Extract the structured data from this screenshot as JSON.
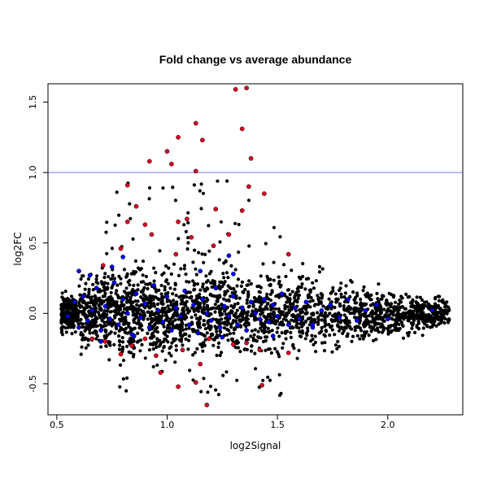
{
  "chart_data": {
    "type": "scatter",
    "title": "Fold change vs average abundance",
    "xlabel": "log2Signal",
    "ylabel": "log2FC",
    "xlim": [
      0.46,
      2.34
    ],
    "ylim": [
      -0.72,
      1.63
    ],
    "x_ticks": [
      "0.5",
      "1.0",
      "1.5",
      "2.0"
    ],
    "y_ticks": [
      "-0.5",
      "0.0",
      "0.5",
      "1.0",
      "1.5"
    ],
    "x_tick_values": [
      0.5,
      1.0,
      1.5,
      2.0
    ],
    "y_tick_values": [
      -0.5,
      0.0,
      0.5,
      1.0,
      1.5
    ],
    "reference_line": {
      "y": 1.0,
      "color": "#7777ff"
    },
    "grid": false,
    "legend": "none",
    "colors": {
      "bulk": "#000000",
      "highlight_blue": "#0000ff",
      "highlight_red": "#dd0022"
    },
    "series": [
      {
        "color": "#dd0022",
        "points": [
          [
            1.31,
            1.59
          ],
          [
            1.36,
            1.6
          ],
          [
            1.13,
            1.35
          ],
          [
            1.34,
            1.31
          ],
          [
            1.05,
            1.25
          ],
          [
            1.16,
            1.23
          ],
          [
            1.0,
            1.15
          ],
          [
            1.38,
            1.1
          ],
          [
            0.92,
            1.08
          ],
          [
            1.02,
            1.06
          ],
          [
            1.13,
            1.01
          ],
          [
            0.82,
            0.91
          ],
          [
            1.37,
            0.9
          ],
          [
            1.44,
            0.85
          ],
          [
            1.28,
            0.56
          ],
          [
            1.34,
            0.73
          ],
          [
            0.86,
            0.76
          ],
          [
            1.22,
            0.74
          ],
          [
            0.9,
            0.63
          ],
          [
            1.05,
            0.65
          ],
          [
            0.82,
            0.65
          ],
          [
            1.09,
            0.67
          ],
          [
            0.93,
            0.56
          ],
          [
            1.11,
            0.54
          ],
          [
            1.21,
            0.48
          ],
          [
            0.79,
            0.46
          ],
          [
            1.04,
            0.42
          ],
          [
            1.55,
            0.42
          ],
          [
            0.71,
            0.34
          ],
          [
            0.66,
            -0.18
          ],
          [
            0.72,
            -0.2
          ],
          [
            0.84,
            -0.23
          ],
          [
            0.9,
            -0.18
          ],
          [
            1.07,
            -0.26
          ],
          [
            1.19,
            -0.18
          ],
          [
            1.36,
            -0.21
          ],
          [
            1.42,
            -0.26
          ],
          [
            1.55,
            -0.28
          ],
          [
            0.79,
            -0.29
          ],
          [
            1.15,
            -0.36
          ],
          [
            0.97,
            -0.42
          ],
          [
            1.05,
            -0.52
          ],
          [
            1.13,
            -0.49
          ],
          [
            1.43,
            -0.51
          ],
          [
            1.18,
            -0.65
          ],
          [
            1.3,
            -0.22
          ],
          [
            0.95,
            -0.3
          ]
        ]
      },
      {
        "color": "#0000ff",
        "points": [
          [
            0.55,
            -0.02
          ],
          [
            0.58,
            0.08
          ],
          [
            0.6,
            -0.1
          ],
          [
            0.62,
            0.12
          ],
          [
            0.64,
            -0.05
          ],
          [
            0.66,
            0.02
          ],
          [
            0.68,
            0.18
          ],
          [
            0.7,
            -0.12
          ],
          [
            0.72,
            0.05
          ],
          [
            0.74,
            -0.04
          ],
          [
            0.76,
            0.22
          ],
          [
            0.78,
            -0.08
          ],
          [
            0.8,
            0.1
          ],
          [
            0.82,
            0.0
          ],
          [
            0.84,
            -0.15
          ],
          [
            0.86,
            0.14
          ],
          [
            0.88,
            -0.03
          ],
          [
            0.9,
            0.07
          ],
          [
            0.92,
            -0.1
          ],
          [
            0.94,
            0.2
          ],
          [
            0.96,
            0.02
          ],
          [
            0.98,
            -0.06
          ],
          [
            1.0,
            0.12
          ],
          [
            1.02,
            -0.12
          ],
          [
            1.04,
            0.04
          ],
          [
            1.06,
            -0.02
          ],
          [
            1.08,
            0.16
          ],
          [
            1.1,
            -0.08
          ],
          [
            1.12,
            0.06
          ],
          [
            1.14,
            -0.14
          ],
          [
            1.16,
            0.1
          ],
          [
            1.18,
            0.0
          ],
          [
            1.2,
            -0.05
          ],
          [
            1.22,
            0.18
          ],
          [
            1.24,
            -0.1
          ],
          [
            1.26,
            0.05
          ],
          [
            1.28,
            -0.02
          ],
          [
            1.3,
            0.12
          ],
          [
            1.32,
            -0.08
          ],
          [
            1.34,
            0.04
          ],
          [
            1.36,
            -0.12
          ],
          [
            1.38,
            0.08
          ],
          [
            1.4,
            0.0
          ],
          [
            1.42,
            -0.04
          ],
          [
            1.44,
            0.1
          ],
          [
            1.46,
            -0.06
          ],
          [
            1.48,
            0.06
          ],
          [
            1.5,
            -0.02
          ],
          [
            1.52,
            0.14
          ],
          [
            1.55,
            -0.08
          ],
          [
            1.58,
            0.04
          ],
          [
            1.6,
            -0.04
          ],
          [
            1.63,
            0.08
          ],
          [
            1.66,
            -0.1
          ],
          [
            1.7,
            0.02
          ],
          [
            1.74,
            0.06
          ],
          [
            1.78,
            -0.03
          ],
          [
            1.82,
            0.1
          ],
          [
            1.86,
            -0.05
          ],
          [
            1.9,
            0.02
          ],
          [
            0.6,
            0.3
          ],
          [
            0.65,
            0.27
          ],
          [
            0.75,
            0.33
          ],
          [
            0.8,
            0.4
          ],
          [
            1.28,
            0.41
          ],
          [
            1.3,
            0.28
          ],
          [
            1.15,
            0.3
          ],
          [
            0.7,
            -0.2
          ],
          [
            0.85,
            -0.16
          ],
          [
            1.25,
            -0.17
          ],
          [
            1.48,
            -0.16
          ],
          [
            1.66,
            -0.08
          ],
          [
            2.2,
            0.02
          ],
          [
            1.95,
            0.06
          ],
          [
            2.0,
            -0.04
          ]
        ]
      }
    ]
  }
}
